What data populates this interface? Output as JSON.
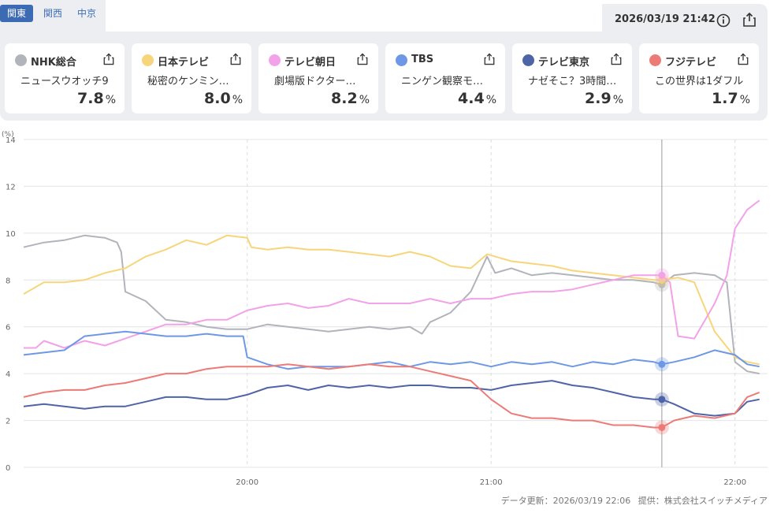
{
  "region_tabs": [
    {
      "label": "関東",
      "active": true
    },
    {
      "label": "関西",
      "active": false
    },
    {
      "label": "中京",
      "active": false
    }
  ],
  "timestamp": "2026/03/19 21:42",
  "channels": [
    {
      "name": "NHK総合",
      "program": "ニュースウオッチ9",
      "rate": "7.8",
      "unit": "%",
      "color": "#b1b4ba"
    },
    {
      "name": "日本テレビ",
      "program": "秘密のケンミン…",
      "rate": "8.0",
      "unit": "%",
      "color": "#f7d57a"
    },
    {
      "name": "テレビ朝日",
      "program": "劇場版ドクター…",
      "rate": "8.2",
      "unit": "%",
      "color": "#f2a2e8"
    },
    {
      "name": "TBS",
      "program": "ニンゲン観察モ…",
      "rate": "4.4",
      "unit": "%",
      "color": "#6e98e6"
    },
    {
      "name": "テレビ東京",
      "program": "ナゼそこ？3時間…",
      "rate": "2.9",
      "unit": "%",
      "color": "#4f64a6"
    },
    {
      "name": "フジテレビ",
      "program": "この世界は1ダフル",
      "rate": "1.7",
      "unit": "%",
      "color": "#ec7b78"
    }
  ],
  "chart_data": {
    "type": "line",
    "ylabel": "(%)",
    "ylim": [
      0,
      14
    ],
    "yticks": [
      "0",
      "2",
      "4",
      "6",
      "8",
      "10",
      "12",
      "14"
    ],
    "xlim": [
      "19:05",
      "22:08"
    ],
    "xticks": [
      "20:00",
      "21:00",
      "22:00"
    ],
    "grid": true,
    "current_time": "21:42",
    "series": [
      {
        "name": "NHK総合",
        "color": "#b1b4ba",
        "points": [
          [
            "19:05",
            9.4
          ],
          [
            "19:10",
            9.6
          ],
          [
            "19:15",
            9.7
          ],
          [
            "19:20",
            9.9
          ],
          [
            "19:25",
            9.8
          ],
          [
            "19:28",
            9.6
          ],
          [
            "19:29",
            9.2
          ],
          [
            "19:30",
            7.5
          ],
          [
            "19:35",
            7.1
          ],
          [
            "19:40",
            6.3
          ],
          [
            "19:45",
            6.2
          ],
          [
            "19:50",
            6.0
          ],
          [
            "19:55",
            5.9
          ],
          [
            "20:00",
            5.9
          ],
          [
            "20:05",
            6.1
          ],
          [
            "20:10",
            6.0
          ],
          [
            "20:15",
            5.9
          ],
          [
            "20:20",
            5.8
          ],
          [
            "20:25",
            5.9
          ],
          [
            "20:30",
            6.0
          ],
          [
            "20:35",
            5.9
          ],
          [
            "20:40",
            6.0
          ],
          [
            "20:43",
            5.7
          ],
          [
            "20:45",
            6.2
          ],
          [
            "20:50",
            6.6
          ],
          [
            "20:55",
            7.5
          ],
          [
            "20:59",
            9.0
          ],
          [
            "21:01",
            8.3
          ],
          [
            "21:05",
            8.5
          ],
          [
            "21:10",
            8.2
          ],
          [
            "21:15",
            8.3
          ],
          [
            "21:20",
            8.2
          ],
          [
            "21:25",
            8.1
          ],
          [
            "21:30",
            8.0
          ],
          [
            "21:35",
            8.0
          ],
          [
            "21:40",
            7.9
          ],
          [
            "21:42",
            7.8
          ],
          [
            "21:45",
            8.2
          ],
          [
            "21:50",
            8.3
          ],
          [
            "21:55",
            8.2
          ],
          [
            "21:58",
            7.9
          ],
          [
            "22:00",
            4.5
          ],
          [
            "22:03",
            4.1
          ],
          [
            "22:06",
            4.0
          ]
        ]
      },
      {
        "name": "日本テレビ",
        "color": "#f7d57a",
        "points": [
          [
            "19:05",
            7.4
          ],
          [
            "19:10",
            7.9
          ],
          [
            "19:15",
            7.9
          ],
          [
            "19:20",
            8.0
          ],
          [
            "19:25",
            8.3
          ],
          [
            "19:30",
            8.5
          ],
          [
            "19:35",
            9.0
          ],
          [
            "19:40",
            9.3
          ],
          [
            "19:45",
            9.7
          ],
          [
            "19:50",
            9.5
          ],
          [
            "19:55",
            9.9
          ],
          [
            "20:00",
            9.8
          ],
          [
            "20:01",
            9.4
          ],
          [
            "20:05",
            9.3
          ],
          [
            "20:10",
            9.4
          ],
          [
            "20:15",
            9.3
          ],
          [
            "20:20",
            9.3
          ],
          [
            "20:25",
            9.2
          ],
          [
            "20:30",
            9.1
          ],
          [
            "20:35",
            9.0
          ],
          [
            "20:40",
            9.2
          ],
          [
            "20:45",
            9.0
          ],
          [
            "20:50",
            8.6
          ],
          [
            "20:55",
            8.5
          ],
          [
            "20:59",
            9.1
          ],
          [
            "21:05",
            8.8
          ],
          [
            "21:10",
            8.7
          ],
          [
            "21:15",
            8.6
          ],
          [
            "21:20",
            8.4
          ],
          [
            "21:25",
            8.3
          ],
          [
            "21:30",
            8.2
          ],
          [
            "21:35",
            8.1
          ],
          [
            "21:40",
            8.0
          ],
          [
            "21:42",
            8.0
          ],
          [
            "21:46",
            8.1
          ],
          [
            "21:50",
            7.9
          ],
          [
            "21:55",
            5.8
          ],
          [
            "22:00",
            4.7
          ],
          [
            "22:03",
            4.5
          ],
          [
            "22:06",
            4.4
          ]
        ]
      },
      {
        "name": "テレビ朝日",
        "color": "#f2a2e8",
        "points": [
          [
            "19:05",
            5.1
          ],
          [
            "19:08",
            5.1
          ],
          [
            "19:10",
            5.4
          ],
          [
            "19:15",
            5.1
          ],
          [
            "19:20",
            5.4
          ],
          [
            "19:25",
            5.2
          ],
          [
            "19:30",
            5.5
          ],
          [
            "19:35",
            5.8
          ],
          [
            "19:40",
            6.1
          ],
          [
            "19:45",
            6.1
          ],
          [
            "19:50",
            6.3
          ],
          [
            "19:55",
            6.3
          ],
          [
            "20:00",
            6.7
          ],
          [
            "20:05",
            6.9
          ],
          [
            "20:10",
            7.0
          ],
          [
            "20:15",
            6.8
          ],
          [
            "20:20",
            6.9
          ],
          [
            "20:25",
            7.2
          ],
          [
            "20:30",
            7.0
          ],
          [
            "20:35",
            7.0
          ],
          [
            "20:40",
            7.0
          ],
          [
            "20:45",
            7.2
          ],
          [
            "20:50",
            7.0
          ],
          [
            "20:55",
            7.2
          ],
          [
            "21:00",
            7.2
          ],
          [
            "21:05",
            7.4
          ],
          [
            "21:10",
            7.5
          ],
          [
            "21:15",
            7.5
          ],
          [
            "21:20",
            7.6
          ],
          [
            "21:25",
            7.8
          ],
          [
            "21:30",
            8.0
          ],
          [
            "21:35",
            8.2
          ],
          [
            "21:40",
            8.2
          ],
          [
            "21:42",
            8.2
          ],
          [
            "21:44",
            7.9
          ],
          [
            "21:46",
            5.6
          ],
          [
            "21:50",
            5.5
          ],
          [
            "21:55",
            7.0
          ],
          [
            "21:58",
            8.2
          ],
          [
            "22:00",
            10.2
          ],
          [
            "22:03",
            11.0
          ],
          [
            "22:06",
            11.4
          ]
        ]
      },
      {
        "name": "TBS",
        "color": "#6e98e6",
        "points": [
          [
            "19:05",
            4.8
          ],
          [
            "19:10",
            4.9
          ],
          [
            "19:15",
            5.0
          ],
          [
            "19:20",
            5.6
          ],
          [
            "19:25",
            5.7
          ],
          [
            "19:30",
            5.8
          ],
          [
            "19:35",
            5.7
          ],
          [
            "19:40",
            5.6
          ],
          [
            "19:45",
            5.6
          ],
          [
            "19:50",
            5.7
          ],
          [
            "19:55",
            5.6
          ],
          [
            "19:59",
            5.6
          ],
          [
            "20:00",
            4.7
          ],
          [
            "20:05",
            4.4
          ],
          [
            "20:10",
            4.2
          ],
          [
            "20:15",
            4.3
          ],
          [
            "20:20",
            4.3
          ],
          [
            "20:25",
            4.3
          ],
          [
            "20:30",
            4.4
          ],
          [
            "20:35",
            4.5
          ],
          [
            "20:40",
            4.3
          ],
          [
            "20:45",
            4.5
          ],
          [
            "20:50",
            4.4
          ],
          [
            "20:55",
            4.5
          ],
          [
            "21:00",
            4.3
          ],
          [
            "21:05",
            4.5
          ],
          [
            "21:10",
            4.4
          ],
          [
            "21:15",
            4.5
          ],
          [
            "21:20",
            4.3
          ],
          [
            "21:25",
            4.5
          ],
          [
            "21:30",
            4.4
          ],
          [
            "21:35",
            4.6
          ],
          [
            "21:40",
            4.5
          ],
          [
            "21:42",
            4.4
          ],
          [
            "21:45",
            4.5
          ],
          [
            "21:50",
            4.7
          ],
          [
            "21:55",
            5.0
          ],
          [
            "22:00",
            4.8
          ],
          [
            "22:03",
            4.4
          ],
          [
            "22:06",
            4.3
          ]
        ]
      },
      {
        "name": "テレビ東京",
        "color": "#4f64a6",
        "points": [
          [
            "19:05",
            2.6
          ],
          [
            "19:10",
            2.7
          ],
          [
            "19:15",
            2.6
          ],
          [
            "19:20",
            2.5
          ],
          [
            "19:25",
            2.6
          ],
          [
            "19:30",
            2.6
          ],
          [
            "19:35",
            2.8
          ],
          [
            "19:40",
            3.0
          ],
          [
            "19:45",
            3.0
          ],
          [
            "19:50",
            2.9
          ],
          [
            "19:55",
            2.9
          ],
          [
            "20:00",
            3.1
          ],
          [
            "20:05",
            3.4
          ],
          [
            "20:10",
            3.5
          ],
          [
            "20:15",
            3.3
          ],
          [
            "20:20",
            3.5
          ],
          [
            "20:25",
            3.4
          ],
          [
            "20:30",
            3.5
          ],
          [
            "20:35",
            3.4
          ],
          [
            "20:40",
            3.5
          ],
          [
            "20:45",
            3.5
          ],
          [
            "20:50",
            3.4
          ],
          [
            "20:55",
            3.4
          ],
          [
            "21:00",
            3.3
          ],
          [
            "21:05",
            3.5
          ],
          [
            "21:10",
            3.6
          ],
          [
            "21:15",
            3.7
          ],
          [
            "21:20",
            3.5
          ],
          [
            "21:25",
            3.4
          ],
          [
            "21:30",
            3.2
          ],
          [
            "21:35",
            3.0
          ],
          [
            "21:40",
            2.9
          ],
          [
            "21:42",
            2.9
          ],
          [
            "21:45",
            2.7
          ],
          [
            "21:50",
            2.3
          ],
          [
            "21:55",
            2.2
          ],
          [
            "22:00",
            2.3
          ],
          [
            "22:03",
            2.8
          ],
          [
            "22:06",
            2.9
          ]
        ]
      },
      {
        "name": "フジテレビ",
        "color": "#ec7b78",
        "points": [
          [
            "19:05",
            3.0
          ],
          [
            "19:10",
            3.2
          ],
          [
            "19:15",
            3.3
          ],
          [
            "19:20",
            3.3
          ],
          [
            "19:25",
            3.5
          ],
          [
            "19:30",
            3.6
          ],
          [
            "19:35",
            3.8
          ],
          [
            "19:40",
            4.0
          ],
          [
            "19:45",
            4.0
          ],
          [
            "19:50",
            4.2
          ],
          [
            "19:55",
            4.3
          ],
          [
            "20:00",
            4.3
          ],
          [
            "20:05",
            4.3
          ],
          [
            "20:10",
            4.4
          ],
          [
            "20:15",
            4.3
          ],
          [
            "20:20",
            4.2
          ],
          [
            "20:25",
            4.3
          ],
          [
            "20:30",
            4.4
          ],
          [
            "20:35",
            4.3
          ],
          [
            "20:40",
            4.3
          ],
          [
            "20:45",
            4.1
          ],
          [
            "20:50",
            3.9
          ],
          [
            "20:55",
            3.7
          ],
          [
            "21:00",
            2.9
          ],
          [
            "21:05",
            2.3
          ],
          [
            "21:10",
            2.1
          ],
          [
            "21:15",
            2.1
          ],
          [
            "21:20",
            2.0
          ],
          [
            "21:25",
            2.0
          ],
          [
            "21:30",
            1.8
          ],
          [
            "21:35",
            1.8
          ],
          [
            "21:40",
            1.7
          ],
          [
            "21:42",
            1.7
          ],
          [
            "21:45",
            2.0
          ],
          [
            "21:50",
            2.2
          ],
          [
            "21:55",
            2.1
          ],
          [
            "22:00",
            2.3
          ],
          [
            "22:03",
            3.0
          ],
          [
            "22:06",
            3.2
          ]
        ]
      }
    ]
  },
  "footer": {
    "updated": "データ更新：2026/03/19 22:06",
    "provider": "提供：株式会社スイッチメディア"
  }
}
